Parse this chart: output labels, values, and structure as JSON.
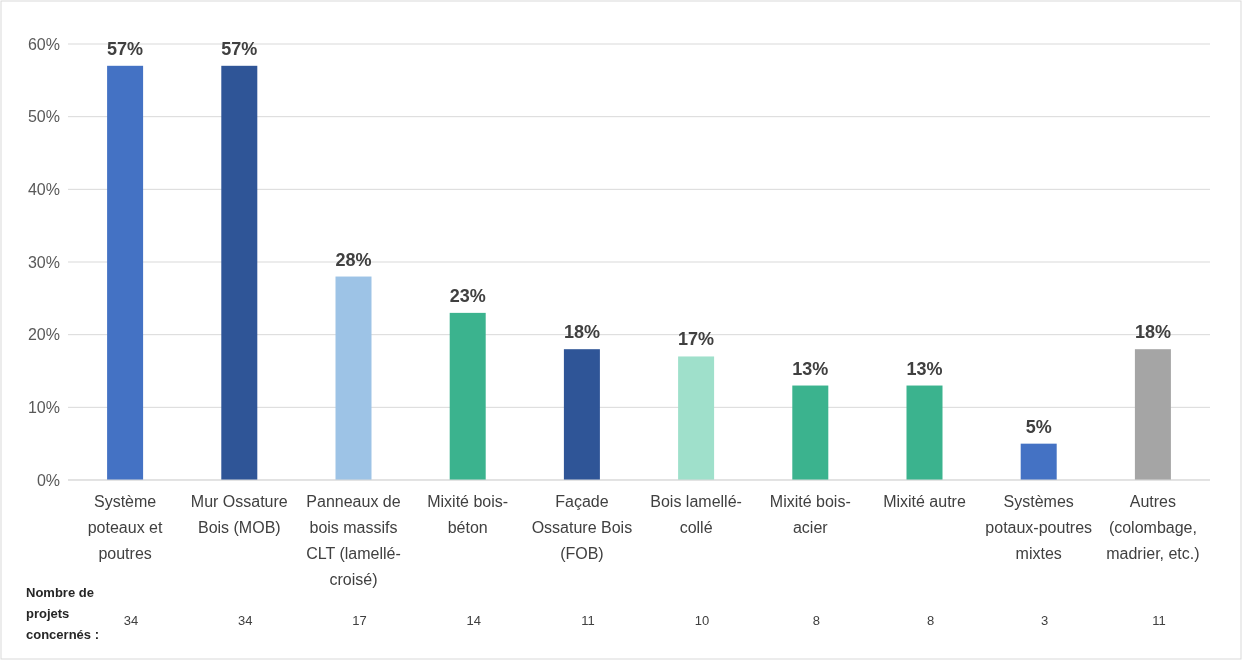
{
  "chart_data": {
    "type": "bar",
    "categories": [
      "Système poteaux et poutres",
      "Mur Ossature Bois (MOB)",
      "Panneaux de bois massifs CLT (lamellé-croisé)",
      "Mixité bois-béton",
      "Façade Ossature Bois (FOB)",
      "Bois lamellé-collé",
      "Mixité bois-acier",
      "Mixité autre",
      "Systèmes potaux-poutres mixtes",
      "Autres (colombage, madrier, etc.)"
    ],
    "values": [
      57,
      57,
      28,
      23,
      18,
      17,
      13,
      13,
      5,
      18
    ],
    "colors": [
      "#4472c4",
      "#2f5597",
      "#9dc3e6",
      "#3bb38e",
      "#2f5597",
      "#9fe0cb",
      "#3bb38e",
      "#3bb38e",
      "#4472c4",
      "#a5a5a5"
    ],
    "value_labels": [
      "57%",
      "57%",
      "28%",
      "23%",
      "18%",
      "17%",
      "13%",
      "13%",
      "5%",
      "18%"
    ],
    "ylim": [
      0,
      60
    ],
    "yticks": [
      {
        "value": 0,
        "label": "0%"
      },
      {
        "value": 10,
        "label": "10%"
      },
      {
        "value": 20,
        "label": "20%"
      },
      {
        "value": 30,
        "label": "30%"
      },
      {
        "value": 40,
        "label": "40%"
      },
      {
        "value": 50,
        "label": "50%"
      },
      {
        "value": 60,
        "label": "60%"
      }
    ],
    "grid": "y",
    "annotations": [
      "Nombre de projets concernés :",
      "34",
      "34",
      "17",
      "14",
      "11",
      "10",
      "8",
      "8",
      "3",
      "11"
    ]
  }
}
